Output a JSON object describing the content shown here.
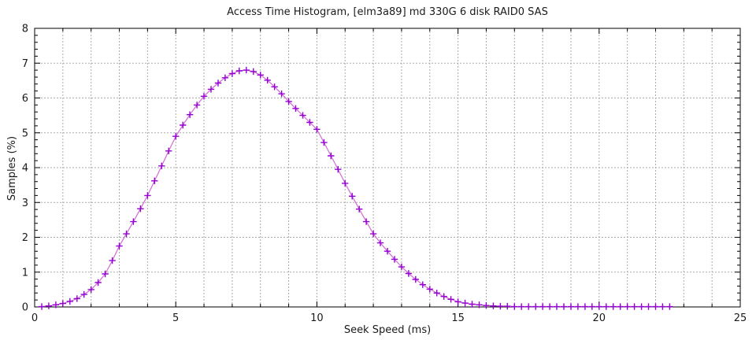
{
  "chart_data": {
    "type": "line",
    "title": "Access Time Histogram, [elm3a89] md 330G 6 disk RAID0 SAS",
    "xlabel": "Seek Speed (ms)",
    "ylabel": "Samples (%)",
    "xlim": [
      0,
      25
    ],
    "ylim": [
      0,
      8
    ],
    "x_major_ticks": [
      0,
      5,
      10,
      15,
      20,
      25
    ],
    "x_minor_step": 1,
    "y_major_ticks": [
      0,
      1,
      2,
      3,
      4,
      5,
      6,
      7,
      8
    ],
    "y_minor_step": 0.2,
    "grid": "on",
    "grid_style": "dotted gray; vertical line every 1 ms, horizontal line every 1 %",
    "legend_position": "none",
    "marker": "+",
    "series": [
      {
        "name": "access-time-histogram",
        "x": [
          0.25,
          0.5,
          0.75,
          1,
          1.25,
          1.5,
          1.75,
          2,
          2.25,
          2.5,
          2.75,
          3,
          3.25,
          3.5,
          3.75,
          4,
          4.25,
          4.5,
          4.75,
          5,
          5.25,
          5.5,
          5.75,
          6,
          6.25,
          6.5,
          6.75,
          7,
          7.25,
          7.5,
          7.75,
          8,
          8.25,
          8.5,
          8.75,
          9,
          9.25,
          9.5,
          9.75,
          10,
          10.25,
          10.5,
          10.75,
          11,
          11.25,
          11.5,
          11.75,
          12,
          12.25,
          12.5,
          12.75,
          13,
          13.25,
          13.5,
          13.75,
          14,
          14.25,
          14.5,
          14.75,
          15,
          15.25,
          15.5,
          15.75,
          16,
          16.25,
          16.5,
          16.75,
          17,
          17.25,
          17.5,
          17.75,
          18,
          18.25,
          18.5,
          18.75,
          19,
          19.25,
          19.5,
          19.75,
          20,
          20.25,
          20.5,
          20.75,
          21,
          21.25,
          21.5,
          21.75,
          22,
          22.25,
          22.5
        ],
        "y": [
          0.01,
          0.03,
          0.06,
          0.1,
          0.16,
          0.24,
          0.36,
          0.5,
          0.7,
          0.95,
          1.33,
          1.75,
          2.1,
          2.45,
          2.82,
          3.2,
          3.62,
          4.05,
          4.48,
          4.9,
          5.22,
          5.52,
          5.8,
          6.05,
          6.25,
          6.43,
          6.58,
          6.7,
          6.78,
          6.8,
          6.76,
          6.66,
          6.51,
          6.32,
          6.12,
          5.9,
          5.7,
          5.5,
          5.3,
          5.1,
          4.72,
          4.34,
          3.95,
          3.55,
          3.18,
          2.81,
          2.45,
          2.1,
          1.84,
          1.6,
          1.37,
          1.15,
          0.96,
          0.79,
          0.64,
          0.51,
          0.4,
          0.3,
          0.22,
          0.15,
          0.11,
          0.08,
          0.06,
          0.04,
          0.03,
          0.02,
          0.02,
          0.01,
          0.01,
          0.01,
          0.01,
          0.01,
          0.01,
          0.01,
          0.01,
          0.01,
          0.01,
          0.01,
          0.01,
          0.01,
          0.01,
          0.01,
          0.01,
          0.01,
          0.01,
          0.01,
          0.01,
          0.01,
          0.01,
          0.01
        ]
      }
    ],
    "colors": {
      "line": "#d36ad3",
      "marker": "#9400d3",
      "grid": "#aaaaaa",
      "axis": "#000000",
      "text": "#1a1a1a"
    }
  }
}
